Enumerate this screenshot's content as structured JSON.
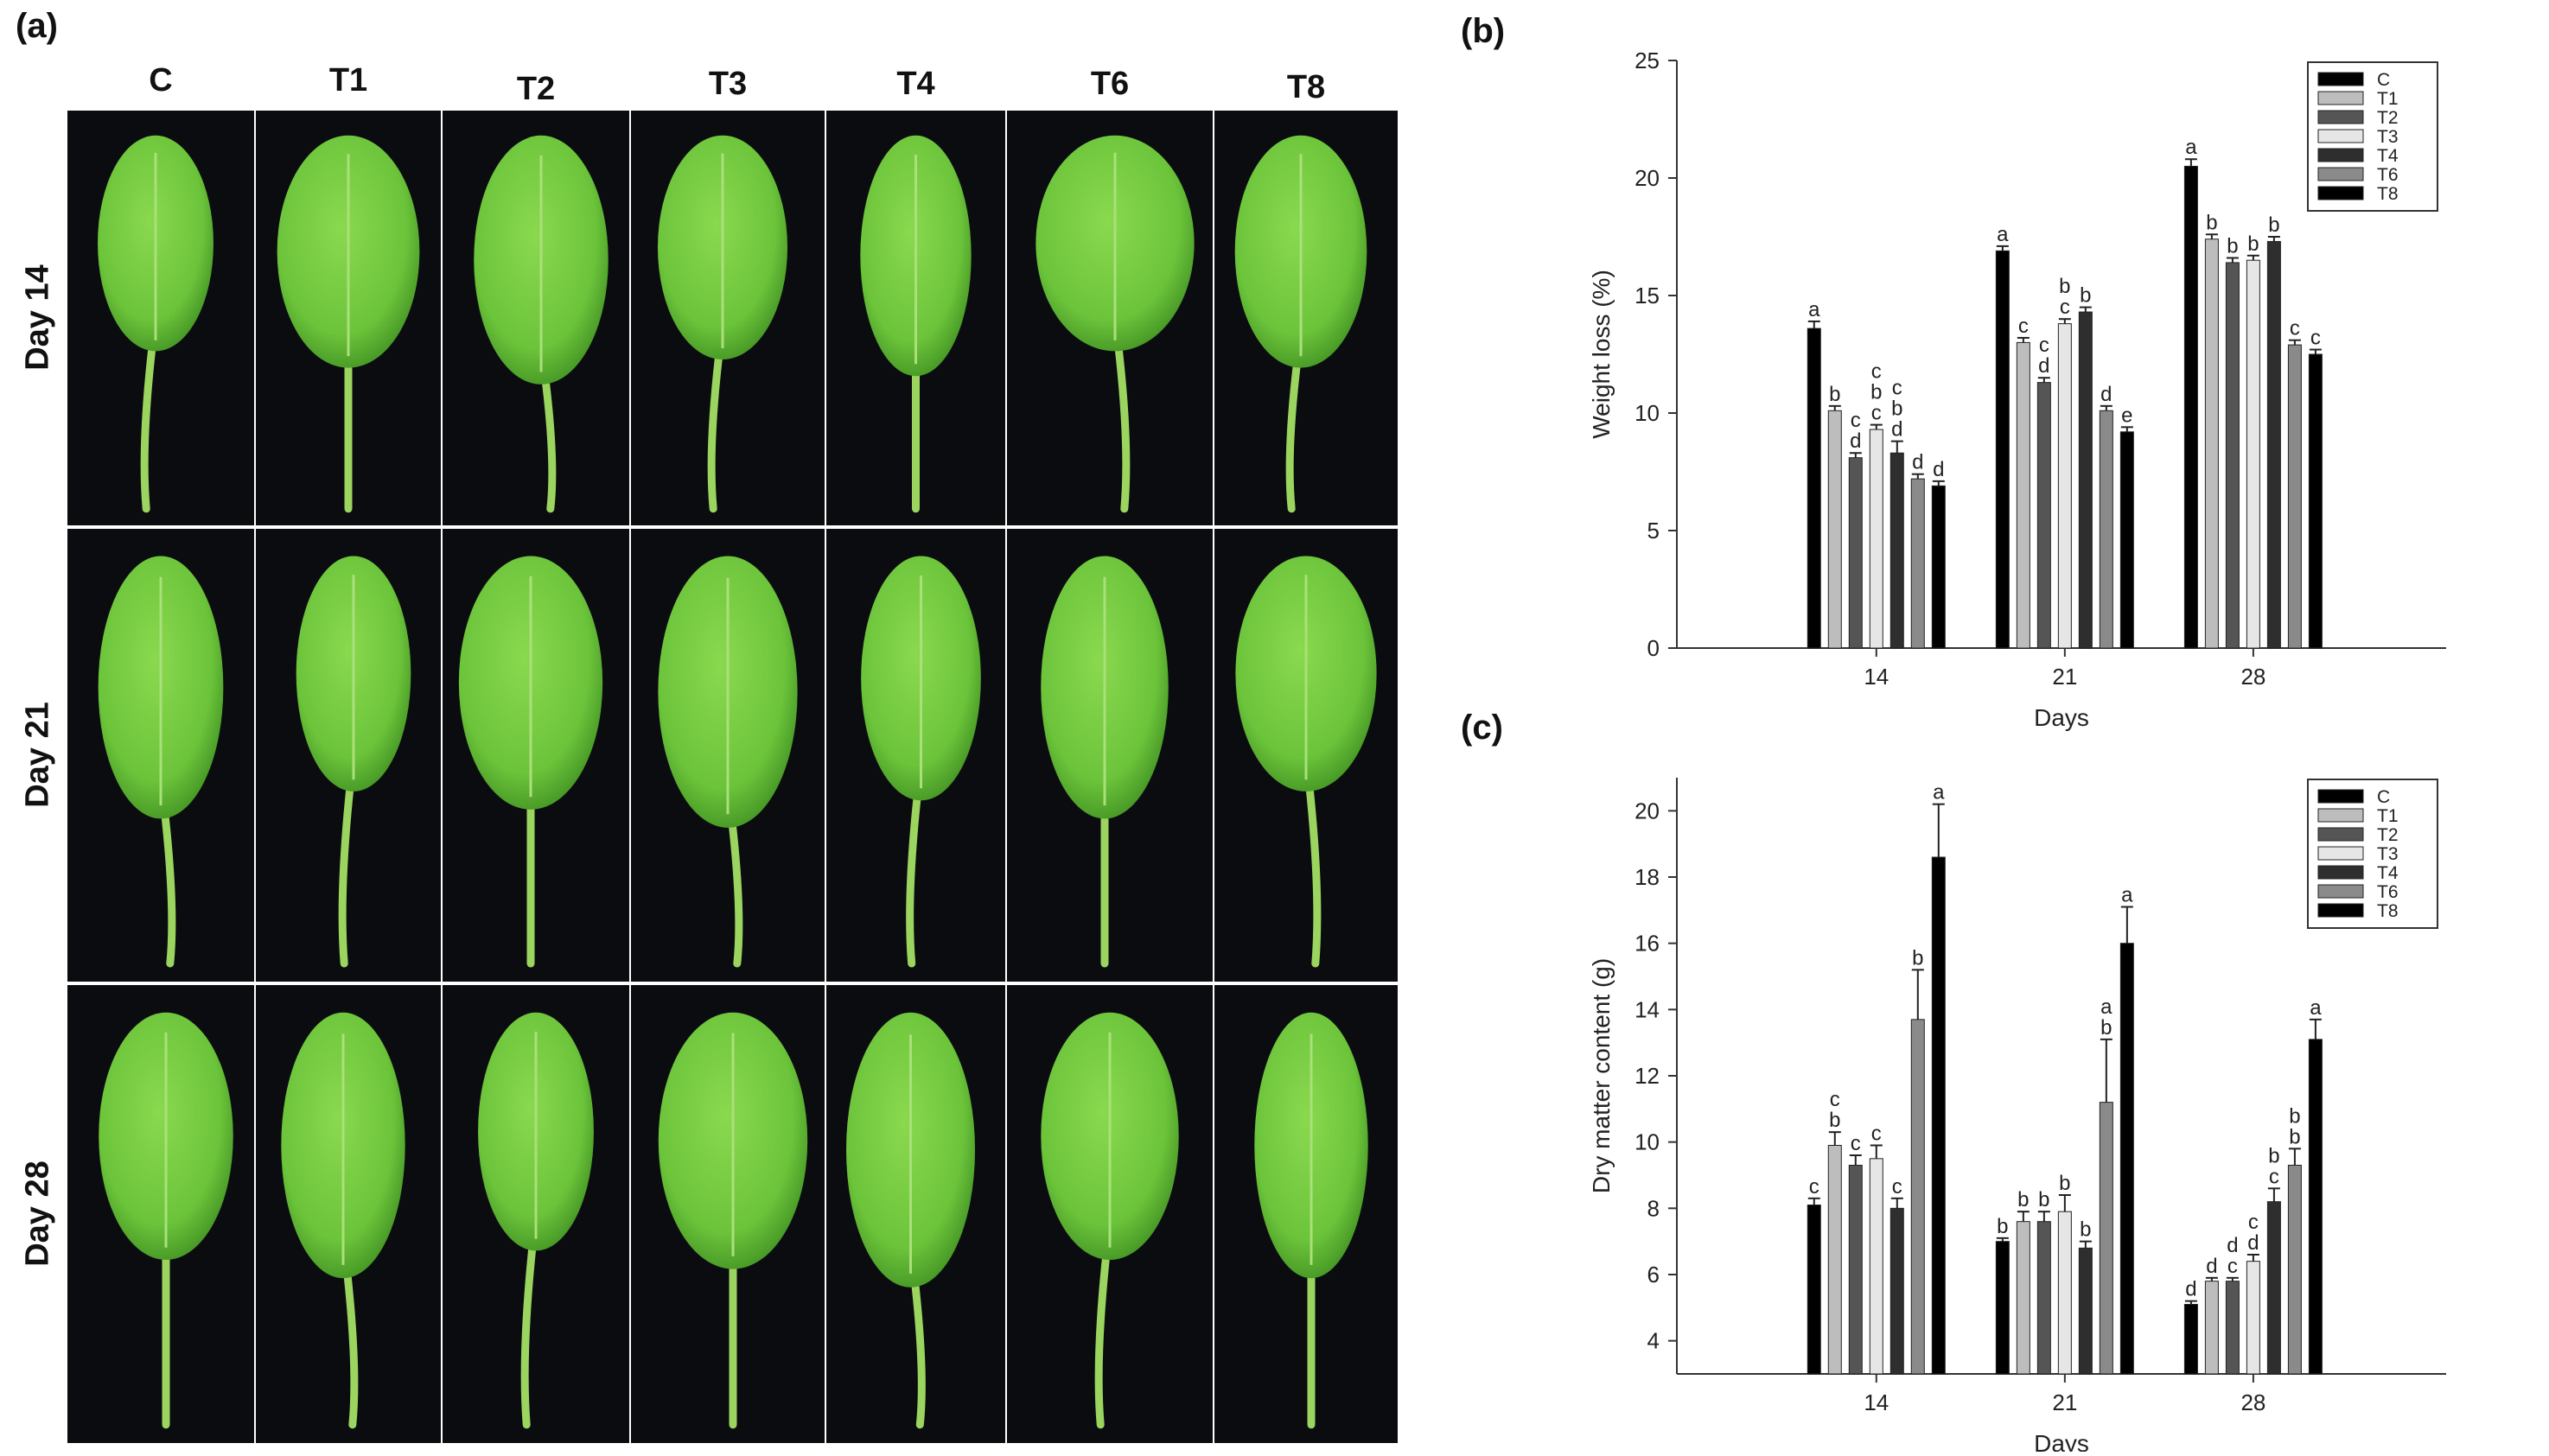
{
  "panels": {
    "a": "(a)",
    "b": "(b)",
    "c": "(c)"
  },
  "photo_grid": {
    "columns": [
      "C",
      "T1",
      "T2",
      "T3",
      "T4",
      "T6",
      "T8"
    ],
    "rows": [
      "Day 14",
      "Day 21",
      "Day 28"
    ],
    "background_color": "#0b0c10",
    "leaf_color": "#6cc43a"
  },
  "chart_data": [
    {
      "type": "bar",
      "panel": "(b)",
      "categories": [
        "14",
        "21",
        "28"
      ],
      "xlabel": "Days",
      "ylabel": "Weight loss (%)",
      "ylim": [
        0,
        25
      ],
      "yticks": [
        0,
        5,
        10,
        15,
        20,
        25
      ],
      "legend_position": "top-right",
      "series": [
        {
          "name": "C",
          "color": "#000000",
          "values": [
            13.6,
            16.9,
            20.5
          ],
          "errors": [
            0.3,
            0.2,
            0.3
          ],
          "letters": [
            "a",
            "a",
            "a"
          ]
        },
        {
          "name": "T1",
          "color": "#bdbdbd",
          "values": [
            10.1,
            13.0,
            17.4
          ],
          "errors": [
            0.2,
            0.2,
            0.2
          ],
          "letters": [
            "b",
            "c",
            "b"
          ]
        },
        {
          "name": "T2",
          "color": "#555555",
          "values": [
            8.1,
            11.3,
            16.4
          ],
          "errors": [
            0.2,
            0.2,
            0.2
          ],
          "letters": [
            "d",
            "d",
            "b"
          ]
        },
        {
          "name": "T3",
          "color": "#e6e6e6",
          "values": [
            9.3,
            13.8,
            16.5
          ],
          "errors": [
            0.2,
            0.2,
            0.2
          ],
          "letters": [
            "c",
            "c",
            "b"
          ]
        },
        {
          "name": "T4",
          "color": "#2e2e2e",
          "values": [
            8.3,
            14.3,
            17.3
          ],
          "errors": [
            0.5,
            0.2,
            0.2
          ],
          "letters": [
            "d",
            "b",
            "b"
          ]
        },
        {
          "name": "T6",
          "color": "#8a8a8a",
          "values": [
            7.2,
            10.1,
            12.9
          ],
          "errors": [
            0.2,
            0.2,
            0.2
          ],
          "letters": [
            "d",
            "d",
            "c"
          ]
        },
        {
          "name": "T8",
          "color": "#000000",
          "values": [
            6.9,
            9.2,
            12.5
          ],
          "errors": [
            0.2,
            0.2,
            0.2
          ],
          "letters": [
            "d",
            "e",
            "c"
          ]
        }
      ],
      "extra_letters": [
        {
          "category": "14",
          "series": "T3",
          "text": "b"
        },
        {
          "category": "14",
          "series": "T4",
          "text": "b"
        },
        {
          "category": "14",
          "series": "T4",
          "text": "c"
        },
        {
          "category": "14",
          "series": "T2",
          "text": "c"
        },
        {
          "category": "14",
          "series": "T3",
          "text": "c"
        },
        {
          "category": "21",
          "series": "T3",
          "text": "b"
        },
        {
          "category": "21",
          "series": "T2",
          "text": "c"
        }
      ]
    },
    {
      "type": "bar",
      "panel": "(c)",
      "categories": [
        "14",
        "21",
        "28"
      ],
      "xlabel": "Days",
      "ylabel": "Dry matter content (g)",
      "ylim": [
        3,
        21
      ],
      "yticks": [
        4,
        6,
        8,
        10,
        12,
        14,
        16,
        18,
        20
      ],
      "legend_position": "top-right",
      "series": [
        {
          "name": "C",
          "color": "#000000",
          "values": [
            8.1,
            7.0,
            5.1
          ],
          "errors": [
            0.2,
            0.1,
            0.1
          ],
          "letters": [
            "c",
            "b",
            "d"
          ]
        },
        {
          "name": "T1",
          "color": "#bdbdbd",
          "values": [
            9.9,
            7.6,
            5.8
          ],
          "errors": [
            0.4,
            0.3,
            0.1
          ],
          "letters": [
            "b",
            "b",
            "d"
          ]
        },
        {
          "name": "T2",
          "color": "#555555",
          "values": [
            9.3,
            7.6,
            5.8
          ],
          "errors": [
            0.3,
            0.3,
            0.1
          ],
          "letters": [
            "c",
            "b",
            "c"
          ]
        },
        {
          "name": "T3",
          "color": "#e6e6e6",
          "values": [
            9.5,
            7.9,
            6.4
          ],
          "errors": [
            0.4,
            0.5,
            0.2
          ],
          "letters": [
            "c",
            "b",
            "d"
          ]
        },
        {
          "name": "T4",
          "color": "#2e2e2e",
          "values": [
            8.0,
            6.8,
            8.2
          ],
          "errors": [
            0.3,
            0.2,
            0.4
          ],
          "letters": [
            "c",
            "b",
            "c"
          ]
        },
        {
          "name": "T6",
          "color": "#8a8a8a",
          "values": [
            13.7,
            11.2,
            9.3
          ],
          "errors": [
            1.5,
            1.9,
            0.5
          ],
          "letters": [
            "b",
            "b",
            "b"
          ]
        },
        {
          "name": "T8",
          "color": "#000000",
          "values": [
            18.6,
            16.0,
            13.1
          ],
          "errors": [
            1.6,
            1.1,
            0.6
          ],
          "letters": [
            "a",
            "a",
            "a"
          ]
        }
      ],
      "extra_letters": [
        {
          "category": "14",
          "series": "T1",
          "text": "c"
        },
        {
          "category": "21",
          "series": "T6",
          "text": "a"
        },
        {
          "category": "28",
          "series": "T3",
          "text": "c"
        },
        {
          "category": "28",
          "series": "T4",
          "text": "b"
        },
        {
          "category": "28",
          "series": "T2",
          "text": "d"
        },
        {
          "category": "28",
          "series": "T6",
          "text": "b"
        }
      ]
    }
  ]
}
